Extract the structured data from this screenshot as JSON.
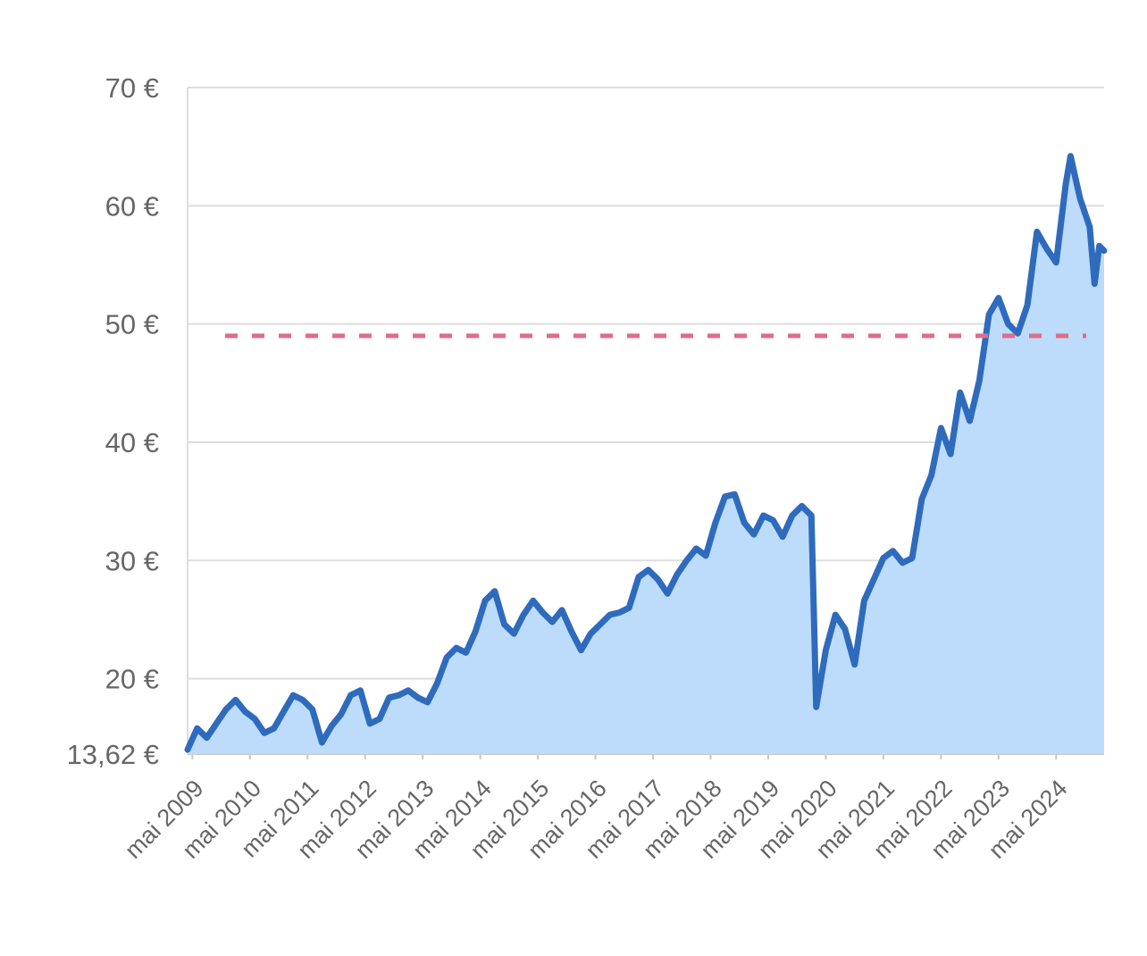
{
  "chart_data": {
    "type": "area",
    "title": "",
    "xlabel": "",
    "ylabel": "",
    "ylim": [
      13.62,
      70
    ],
    "y_ticks": [
      {
        "value": 70,
        "label": "70 €"
      },
      {
        "value": 60,
        "label": "60 €"
      },
      {
        "value": 50,
        "label": "50 €"
      },
      {
        "value": 40,
        "label": "40 €"
      },
      {
        "value": 30,
        "label": "30 €"
      },
      {
        "value": 20,
        "label": "20 €"
      },
      {
        "value": 13.62,
        "label": "13,62 €"
      }
    ],
    "x_range": [
      "2009-04",
      "2025-03"
    ],
    "x_ticks": [
      {
        "date": "2009-05",
        "label": "mai 2009"
      },
      {
        "date": "2010-05",
        "label": "mai 2010"
      },
      {
        "date": "2011-05",
        "label": "mai 2011"
      },
      {
        "date": "2012-05",
        "label": "mai 2012"
      },
      {
        "date": "2013-05",
        "label": "mai 2013"
      },
      {
        "date": "2014-05",
        "label": "mai 2014"
      },
      {
        "date": "2015-05",
        "label": "mai 2015"
      },
      {
        "date": "2016-05",
        "label": "mai 2016"
      },
      {
        "date": "2017-05",
        "label": "mai 2017"
      },
      {
        "date": "2018-05",
        "label": "mai 2018"
      },
      {
        "date": "2019-05",
        "label": "mai 2019"
      },
      {
        "date": "2020-05",
        "label": "mai 2020"
      },
      {
        "date": "2021-05",
        "label": "mai 2021"
      },
      {
        "date": "2022-05",
        "label": "mai 2022"
      },
      {
        "date": "2023-05",
        "label": "mai 2023"
      },
      {
        "date": "2024-05",
        "label": "mai 2024"
      }
    ],
    "reference_line": {
      "value": 49,
      "color": "#e06c88",
      "style": "dashed"
    },
    "grid": true,
    "colors": {
      "line": "#2f6bbd",
      "fill": "#bddcfb",
      "grid": "#dddddd",
      "axis_text": "#666666"
    },
    "series": [
      {
        "values": [
          [
            "2009-04",
            14.0
          ],
          [
            "2009-06",
            15.8
          ],
          [
            "2009-08",
            15.0
          ],
          [
            "2009-10",
            16.2
          ],
          [
            "2009-12",
            17.4
          ],
          [
            "2010-02",
            18.2
          ],
          [
            "2010-04",
            17.2
          ],
          [
            "2010-06",
            16.6
          ],
          [
            "2010-08",
            15.4
          ],
          [
            "2010-10",
            15.8
          ],
          [
            "2010-12",
            17.2
          ],
          [
            "2011-02",
            18.6
          ],
          [
            "2011-04",
            18.2
          ],
          [
            "2011-06",
            17.4
          ],
          [
            "2011-08",
            14.6
          ],
          [
            "2011-10",
            16.0
          ],
          [
            "2011-12",
            17.0
          ],
          [
            "2012-02",
            18.6
          ],
          [
            "2012-04",
            19.0
          ],
          [
            "2012-06",
            16.2
          ],
          [
            "2012-08",
            16.6
          ],
          [
            "2012-10",
            18.4
          ],
          [
            "2012-12",
            18.6
          ],
          [
            "2013-02",
            19.0
          ],
          [
            "2013-04",
            18.4
          ],
          [
            "2013-06",
            18.0
          ],
          [
            "2013-08",
            19.6
          ],
          [
            "2013-10",
            21.8
          ],
          [
            "2013-12",
            22.6
          ],
          [
            "2014-02",
            22.2
          ],
          [
            "2014-04",
            24.0
          ],
          [
            "2014-06",
            26.6
          ],
          [
            "2014-08",
            27.4
          ],
          [
            "2014-10",
            24.6
          ],
          [
            "2014-12",
            23.8
          ],
          [
            "2015-02",
            25.4
          ],
          [
            "2015-04",
            26.6
          ],
          [
            "2015-06",
            25.6
          ],
          [
            "2015-08",
            24.8
          ],
          [
            "2015-10",
            25.8
          ],
          [
            "2015-12",
            24.0
          ],
          [
            "2016-02",
            22.4
          ],
          [
            "2016-04",
            23.8
          ],
          [
            "2016-06",
            24.6
          ],
          [
            "2016-08",
            25.4
          ],
          [
            "2016-10",
            25.6
          ],
          [
            "2016-12",
            26.0
          ],
          [
            "2017-02",
            28.6
          ],
          [
            "2017-04",
            29.2
          ],
          [
            "2017-06",
            28.4
          ],
          [
            "2017-08",
            27.2
          ],
          [
            "2017-10",
            28.8
          ],
          [
            "2017-12",
            30.0
          ],
          [
            "2018-02",
            31.0
          ],
          [
            "2018-04",
            30.4
          ],
          [
            "2018-06",
            33.2
          ],
          [
            "2018-08",
            35.4
          ],
          [
            "2018-10",
            35.6
          ],
          [
            "2018-12",
            33.2
          ],
          [
            "2019-02",
            32.2
          ],
          [
            "2019-04",
            33.8
          ],
          [
            "2019-06",
            33.4
          ],
          [
            "2019-08",
            32.0
          ],
          [
            "2019-10",
            33.8
          ],
          [
            "2019-12",
            34.6
          ],
          [
            "2020-02",
            33.8
          ],
          [
            "2020-03",
            17.6
          ],
          [
            "2020-05",
            22.4
          ],
          [
            "2020-07",
            25.4
          ],
          [
            "2020-09",
            24.2
          ],
          [
            "2020-11",
            21.2
          ],
          [
            "2021-01",
            26.6
          ],
          [
            "2021-03",
            28.4
          ],
          [
            "2021-05",
            30.2
          ],
          [
            "2021-07",
            30.8
          ],
          [
            "2021-09",
            29.8
          ],
          [
            "2021-11",
            30.2
          ],
          [
            "2022-01",
            35.2
          ],
          [
            "2022-03",
            37.2
          ],
          [
            "2022-05",
            41.2
          ],
          [
            "2022-07",
            39.0
          ],
          [
            "2022-09",
            44.2
          ],
          [
            "2022-11",
            41.8
          ],
          [
            "2023-01",
            45.2
          ],
          [
            "2023-03",
            50.8
          ],
          [
            "2023-05",
            52.2
          ],
          [
            "2023-07",
            50.0
          ],
          [
            "2023-09",
            49.2
          ],
          [
            "2023-11",
            51.6
          ],
          [
            "2024-01",
            57.8
          ],
          [
            "2024-03",
            56.4
          ],
          [
            "2024-05",
            55.2
          ],
          [
            "2024-07",
            61.8
          ],
          [
            "2024-08",
            64.2
          ],
          [
            "2024-10",
            60.6
          ],
          [
            "2024-12",
            58.2
          ],
          [
            "2025-01",
            53.4
          ],
          [
            "2025-02",
            56.6
          ],
          [
            "2025-03",
            56.2
          ]
        ]
      }
    ]
  }
}
